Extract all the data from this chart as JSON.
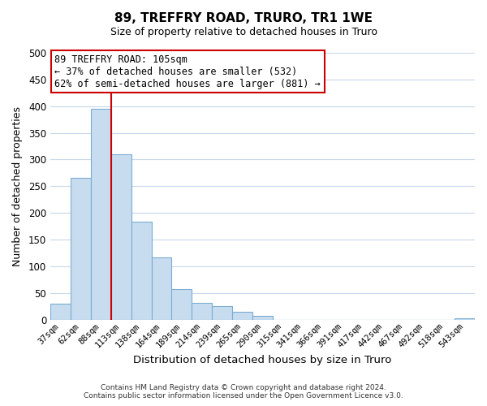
{
  "title": "89, TREFFRY ROAD, TRURO, TR1 1WE",
  "subtitle": "Size of property relative to detached houses in Truro",
  "xlabel": "Distribution of detached houses by size in Truro",
  "ylabel": "Number of detached properties",
  "bar_color": "#c8dcf0",
  "bar_edge_color": "#7aadd0",
  "categories": [
    "37sqm",
    "62sqm",
    "88sqm",
    "113sqm",
    "138sqm",
    "164sqm",
    "189sqm",
    "214sqm",
    "239sqm",
    "265sqm",
    "290sqm",
    "315sqm",
    "341sqm",
    "366sqm",
    "391sqm",
    "417sqm",
    "442sqm",
    "467sqm",
    "492sqm",
    "518sqm",
    "543sqm"
  ],
  "values": [
    30,
    265,
    395,
    310,
    183,
    117,
    58,
    32,
    25,
    15,
    7,
    0,
    0,
    0,
    0,
    0,
    0,
    0,
    0,
    0,
    2
  ],
  "ylim": [
    0,
    500
  ],
  "yticks": [
    0,
    50,
    100,
    150,
    200,
    250,
    300,
    350,
    400,
    450,
    500
  ],
  "vline_x": 2.5,
  "vline_color": "#cc0000",
  "annotation_title": "89 TREFFRY ROAD: 105sqm",
  "annotation_line1": "← 37% of detached houses are smaller (532)",
  "annotation_line2": "62% of semi-detached houses are larger (881) →",
  "footer_line1": "Contains HM Land Registry data © Crown copyright and database right 2024.",
  "footer_line2": "Contains public sector information licensed under the Open Government Licence v3.0.",
  "background_color": "#ffffff",
  "grid_color": "#c8d8ec"
}
